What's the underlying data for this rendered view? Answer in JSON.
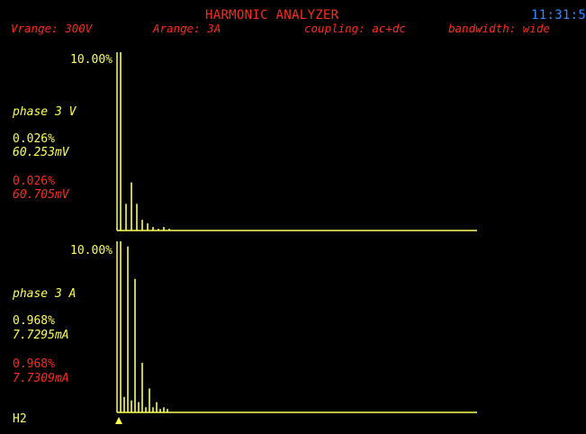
{
  "header": {
    "title": "HARMONIC ANALYZER",
    "clock": "11:31:5",
    "vrange": "Vrange: 300V",
    "arange": "Arange: 3A",
    "coupling": "coupling: ac+dc",
    "bandwidth": "bandwidth: wide"
  },
  "voltage_panel": {
    "scale": "10.00%",
    "channel": "phase 3 V",
    "reading1_pct": "0.026%",
    "reading1_val": "60.253mV",
    "reading2_pct": "0.026%",
    "reading2_val": "60.705mV",
    "bars": [
      1.0,
      0.15,
      0.27,
      0.15,
      0.06,
      0.04,
      0.02,
      0.01,
      0.02,
      0.01
    ]
  },
  "current_panel": {
    "scale": "10.00%",
    "channel": "phase 3 A",
    "reading1_pct": "0.968%",
    "reading1_val": "7.7295mA",
    "reading2_pct": "0.968%",
    "reading2_val": "7.7309mA",
    "bars": [
      1.0,
      0.09,
      0.97,
      0.07,
      0.78,
      0.06,
      0.29,
      0.03,
      0.14,
      0.03,
      0.06,
      0.02,
      0.03,
      0.02
    ]
  },
  "cursor": {
    "label": "H2"
  },
  "colors": {
    "background": "#000000",
    "trace": "#ffff55",
    "alert": "#ff2b1a",
    "clock": "#2f8bff"
  }
}
